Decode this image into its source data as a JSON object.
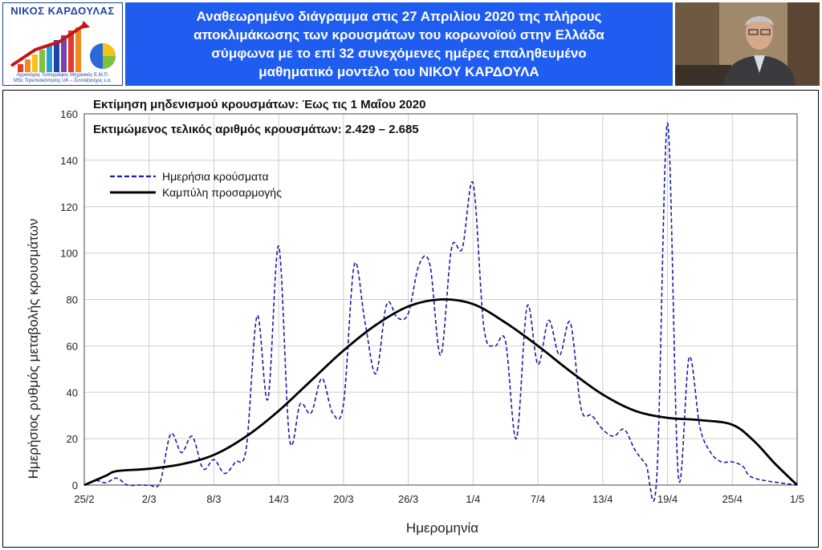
{
  "header": {
    "logo_name": "ΝΙΚΟΣ ΚΑΡΔΟΥΛΑΣ",
    "logo_subtitle_1": "Αγρονόμος Τοπογράφος Μηχανικός Ε.Μ.Π.",
    "logo_subtitle_2": "MSc Τηλεπισκόπησης UK – Συνταξιούχος ε.α.",
    "title_lines": [
      "Αναθεωρημένο διάγραμμα στις 27 Απριλίου 2020 της πλήρους",
      "αποκλιμάκωσης  των κρουσμάτων του κορωνοϊού στην Ελλάδα",
      "σύμφωνα με το επί 32 συνεχόμενες ημέρες επαληθευμένο",
      "μαθηματικό μοντέλο του ΝΙΚΟΥ ΚΑΡΔΟΥΛΑ"
    ]
  },
  "chart_data": {
    "type": "line",
    "annotations": [
      "Εκτίμηση μηδενισμού κρουσμάτων: Έως τις 1 Μαΐου 2020",
      "Εκτιμώμενος τελικός αριθμός κρουσμάτων: 2.429 – 2.685"
    ],
    "xlabel": "Ημερομηνία",
    "ylabel": "Ημερήσιος ρυθμός μεταβολής κρουσμάτων",
    "ylim": [
      0,
      160
    ],
    "yticks": [
      0,
      20,
      40,
      60,
      80,
      100,
      120,
      140,
      160
    ],
    "xticks": [
      {
        "label": "25/2",
        "day": 0
      },
      {
        "label": "2/3",
        "day": 6
      },
      {
        "label": "8/3",
        "day": 12
      },
      {
        "label": "14/3",
        "day": 18
      },
      {
        "label": "20/3",
        "day": 24
      },
      {
        "label": "26/3",
        "day": 30
      },
      {
        "label": "1/4",
        "day": 36
      },
      {
        "label": "7/4",
        "day": 42
      },
      {
        "label": "13/4",
        "day": 48
      },
      {
        "label": "19/4",
        "day": 54
      },
      {
        "label": "25/4",
        "day": 60
      },
      {
        "label": "1/5",
        "day": 66
      }
    ],
    "xlim": [
      "25/2",
      "1/5"
    ],
    "grid": true,
    "legend_position": "top-left",
    "series": [
      {
        "name": "Ημερήσια κρούσματα",
        "style": "dashed",
        "color": "#1a1aa8",
        "points": [
          [
            "25/2",
            0
          ],
          [
            "26/2",
            2
          ],
          [
            "27/2",
            1
          ],
          [
            "28/2",
            3
          ],
          [
            "29/2",
            0
          ],
          [
            "1/3",
            0
          ],
          [
            "2/3",
            0
          ],
          [
            "3/3",
            1
          ],
          [
            "4/3",
            22
          ],
          [
            "5/3",
            14
          ],
          [
            "6/3",
            21
          ],
          [
            "7/3",
            7
          ],
          [
            "8/3",
            11
          ],
          [
            "9/3",
            5
          ],
          [
            "10/3",
            10
          ],
          [
            "11/3",
            16
          ],
          [
            "12/3",
            73
          ],
          [
            "13/3",
            37
          ],
          [
            "14/3",
            103
          ],
          [
            "15/3",
            20
          ],
          [
            "16/3",
            35
          ],
          [
            "17/3",
            31
          ],
          [
            "18/3",
            46
          ],
          [
            "19/3",
            31
          ],
          [
            "20/3",
            35
          ],
          [
            "21/3",
            95
          ],
          [
            "22/3",
            70
          ],
          [
            "23/3",
            48
          ],
          [
            "24/3",
            78
          ],
          [
            "25/3",
            72
          ],
          [
            "26/3",
            74
          ],
          [
            "27/3",
            95
          ],
          [
            "28/3",
            95
          ],
          [
            "29/3",
            56
          ],
          [
            "30/3",
            102
          ],
          [
            "31/3",
            102
          ],
          [
            "1/4",
            130
          ],
          [
            "2/4",
            68
          ],
          [
            "3/4",
            60
          ],
          [
            "4/4",
            62
          ],
          [
            "5/4",
            20
          ],
          [
            "6/4",
            77
          ],
          [
            "7/4",
            52
          ],
          [
            "8/4",
            71
          ],
          [
            "9/4",
            56
          ],
          [
            "10/4",
            70
          ],
          [
            "11/4",
            33
          ],
          [
            "12/4",
            30
          ],
          [
            "13/4",
            24
          ],
          [
            "14/4",
            21
          ],
          [
            "15/4",
            24
          ],
          [
            "16/4",
            15
          ],
          [
            "17/4",
            9
          ],
          [
            "18/4",
            3
          ],
          [
            "19/4",
            156
          ],
          [
            "20/4",
            4
          ],
          [
            "21/4",
            55
          ],
          [
            "22/4",
            25
          ],
          [
            "23/4",
            14
          ],
          [
            "24/4",
            10
          ],
          [
            "25/4",
            10
          ],
          [
            "26/4",
            8
          ],
          [
            "27/4",
            3
          ],
          [
            "1/5",
            0
          ]
        ]
      },
      {
        "name": "Καμπύλη προσαρμογής",
        "style": "solid",
        "color": "#000000",
        "points": [
          [
            "25/2",
            0
          ],
          [
            "27/2",
            4
          ],
          [
            "28/2",
            6
          ],
          [
            "2/3",
            7
          ],
          [
            "5/3",
            9
          ],
          [
            "8/3",
            13
          ],
          [
            "11/3",
            21
          ],
          [
            "14/3",
            32
          ],
          [
            "17/3",
            45
          ],
          [
            "20/3",
            58
          ],
          [
            "23/3",
            69
          ],
          [
            "26/3",
            77
          ],
          [
            "29/3",
            80
          ],
          [
            "1/4",
            78
          ],
          [
            "4/4",
            70
          ],
          [
            "7/4",
            60
          ],
          [
            "10/4",
            49
          ],
          [
            "13/4",
            39
          ],
          [
            "16/4",
            32
          ],
          [
            "19/4",
            29
          ],
          [
            "22/4",
            28
          ],
          [
            "25/4",
            26
          ],
          [
            "27/4",
            19
          ],
          [
            "29/4",
            9
          ],
          [
            "1/5",
            0
          ]
        ]
      }
    ]
  }
}
